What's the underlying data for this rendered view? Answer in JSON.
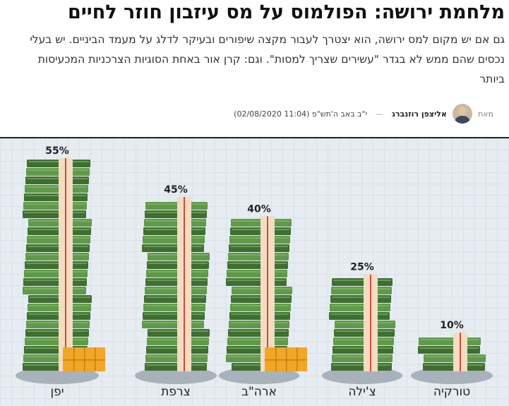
{
  "article": {
    "headline": "מלחמת ירושה: הפולמוס על מס עיזבון חוזר לחיים",
    "subtitle": "גם אם יש מקום למס ירושה, הוא יצטרך לעבור מקצה שיפורים ובעיקר לדלג על מעמד הביניים. יש בעלי\nנכסים שהם ממש לא בגדר \"עשירים שצריך למסות\". וגם: קרן אור באחת הסוגיות הצרכניות המכעיסות\nביותר",
    "byline_prefix": "מאת",
    "author": "אליצפן רוזנברג",
    "separator": "—",
    "date": "י\"ב באב ה'תש\"פ (11:04 02/08/2020)"
  },
  "icons": {
    "avatar": "author-avatar"
  },
  "colors": {
    "money_green": "#5f9a4a",
    "money_dark": "#3f6e32",
    "band": "#f2dcc2",
    "band_line": "#d24a3a",
    "gold": "#f2a628",
    "shadow": "#a9b2bb",
    "background": "#e6ecf1"
  },
  "chart_data": {
    "type": "bar",
    "categories": [
      "טורקיה",
      "צ'ילה",
      "ארה\"ב",
      "צרפת",
      "יפן"
    ],
    "values": [
      10,
      25,
      40,
      45,
      55
    ],
    "value_labels": [
      "10%",
      "25%",
      "40%",
      "45%",
      "55%"
    ],
    "ylim": [
      0,
      55
    ],
    "gold_bars": [
      "ארה\"ב",
      "יפן"
    ],
    "title": "",
    "xlabel": "",
    "ylabel": ""
  }
}
